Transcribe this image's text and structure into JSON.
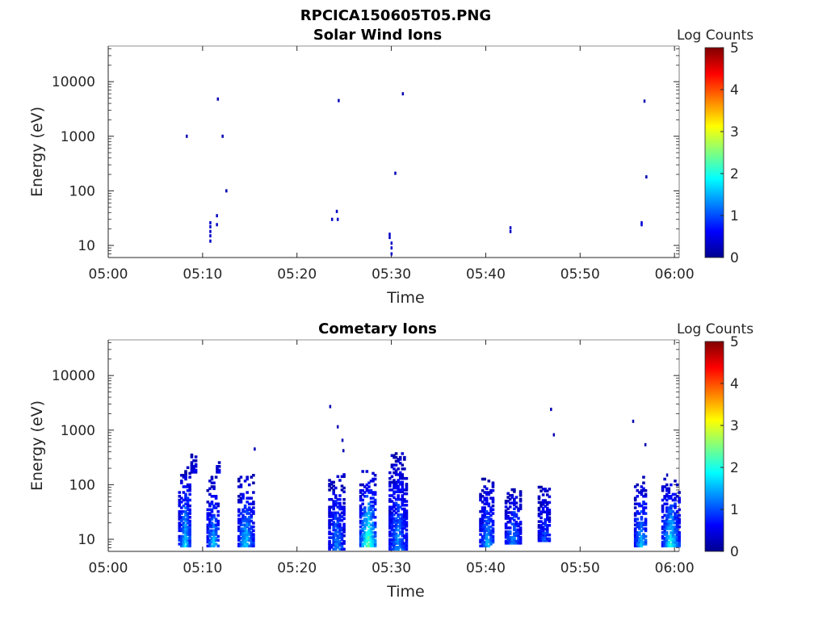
{
  "figure_title": "RPCICA150605T05.PNG",
  "colorbar": {
    "label": "Log Counts",
    "ticks": [
      "0",
      "1",
      "2",
      "3",
      "4",
      "5"
    ],
    "stops": [
      "#00008f",
      "#0000ff",
      "#00ffff",
      "#ffff00",
      "#ff0000",
      "#800000"
    ]
  },
  "chart_data": [
    {
      "type": "heatmap",
      "title": "Solar Wind Ions",
      "xlabel": "Time",
      "ylabel": "Energy (eV)",
      "x_ticks": [
        "05:00",
        "05:10",
        "05:20",
        "05:30",
        "05:40",
        "05:50",
        "06:00"
      ],
      "x_range_minutes": [
        0,
        60.5
      ],
      "y_ticks": [
        "10",
        "100",
        "1000",
        "10000"
      ],
      "y_scale": "log",
      "y_range": [
        6,
        45000
      ],
      "z_range": [
        0,
        5
      ],
      "cells": [
        {
          "t": 8.3,
          "e": 1000,
          "v": 0.2
        },
        {
          "t": 10.8,
          "e": 12,
          "v": 0.3
        },
        {
          "t": 10.8,
          "e": 15,
          "v": 0.3
        },
        {
          "t": 10.8,
          "e": 18,
          "v": 0.3
        },
        {
          "t": 10.8,
          "e": 22,
          "v": 0.3
        },
        {
          "t": 10.8,
          "e": 26,
          "v": 0.3
        },
        {
          "t": 11.5,
          "e": 24,
          "v": 0.3
        },
        {
          "t": 11.5,
          "e": 35,
          "v": 0.3
        },
        {
          "t": 11.6,
          "e": 4800,
          "v": 0.2
        },
        {
          "t": 12.1,
          "e": 1000,
          "v": 0.2
        },
        {
          "t": 12.5,
          "e": 100,
          "v": 0.2
        },
        {
          "t": 23.7,
          "e": 30,
          "v": 0.3
        },
        {
          "t": 24.2,
          "e": 42,
          "v": 0.3
        },
        {
          "t": 24.3,
          "e": 30,
          "v": 0.3
        },
        {
          "t": 24.4,
          "e": 4500,
          "v": 0.2
        },
        {
          "t": 29.8,
          "e": 14,
          "v": 0.3
        },
        {
          "t": 29.8,
          "e": 16,
          "v": 0.3
        },
        {
          "t": 30.0,
          "e": 7,
          "v": 0.3
        },
        {
          "t": 30.0,
          "e": 9,
          "v": 0.3
        },
        {
          "t": 30.0,
          "e": 11,
          "v": 0.3
        },
        {
          "t": 30.4,
          "e": 210,
          "v": 0.2
        },
        {
          "t": 31.2,
          "e": 6000,
          "v": 0.2
        },
        {
          "t": 42.6,
          "e": 18,
          "v": 0.3
        },
        {
          "t": 42.6,
          "e": 21,
          "v": 0.3
        },
        {
          "t": 56.5,
          "e": 24,
          "v": 0.4
        },
        {
          "t": 56.5,
          "e": 26,
          "v": 0.4
        },
        {
          "t": 56.8,
          "e": 4400,
          "v": 0.2
        },
        {
          "t": 57.0,
          "e": 180,
          "v": 0.2
        }
      ]
    },
    {
      "type": "heatmap",
      "title": "Cometary Ions",
      "xlabel": "Time",
      "ylabel": "Energy (eV)",
      "x_ticks": [
        "05:00",
        "05:10",
        "05:20",
        "05:30",
        "05:40",
        "05:50",
        "06:00"
      ],
      "x_range_minutes": [
        0,
        60.5
      ],
      "y_ticks": [
        "10",
        "100",
        "1000",
        "10000"
      ],
      "y_scale": "log",
      "y_range": [
        6,
        45000
      ],
      "z_range": [
        0,
        5
      ],
      "bursts": [
        {
          "t0": 7.4,
          "t1": 8.7,
          "emin": 8,
          "emax": 220,
          "core": 1.3
        },
        {
          "t0": 8.7,
          "t1": 9.2,
          "emin": 180,
          "emax": 450,
          "core": 0.4
        },
        {
          "t0": 10.4,
          "t1": 11.7,
          "emin": 8,
          "emax": 150,
          "core": 1.2
        },
        {
          "t0": 11.4,
          "t1": 11.8,
          "emin": 180,
          "emax": 280,
          "core": 0.4
        },
        {
          "t0": 13.7,
          "t1": 15.3,
          "emin": 8,
          "emax": 160,
          "core": 1.3
        },
        {
          "t0": 23.3,
          "t1": 24.9,
          "emin": 7,
          "emax": 170,
          "core": 1.0
        },
        {
          "t0": 26.6,
          "t1": 28.3,
          "emin": 8,
          "emax": 190,
          "core": 1.9
        },
        {
          "t0": 29.7,
          "t1": 31.5,
          "emin": 7,
          "emax": 420,
          "core": 1.0
        },
        {
          "t0": 39.3,
          "t1": 40.8,
          "emin": 8,
          "emax": 140,
          "core": 1.1
        },
        {
          "t0": 42.0,
          "t1": 43.6,
          "emin": 9,
          "emax": 100,
          "core": 1.0
        },
        {
          "t0": 45.5,
          "t1": 46.8,
          "emin": 10,
          "emax": 100,
          "core": 0.7
        },
        {
          "t0": 55.7,
          "t1": 57.0,
          "emin": 8,
          "emax": 160,
          "core": 1.2
        },
        {
          "t0": 58.6,
          "t1": 60.4,
          "emin": 8,
          "emax": 150,
          "core": 1.5
        }
      ],
      "cells": [
        {
          "t": 23.5,
          "e": 2700,
          "v": 0.2
        },
        {
          "t": 24.3,
          "e": 1150,
          "v": 0.2
        },
        {
          "t": 24.8,
          "e": 650,
          "v": 0.2
        },
        {
          "t": 24.9,
          "e": 420,
          "v": 0.2
        },
        {
          "t": 15.5,
          "e": 450,
          "v": 0.2
        },
        {
          "t": 46.9,
          "e": 2400,
          "v": 0.2
        },
        {
          "t": 47.2,
          "e": 820,
          "v": 0.2
        },
        {
          "t": 55.6,
          "e": 1450,
          "v": 0.2
        },
        {
          "t": 56.9,
          "e": 540,
          "v": 0.2
        },
        {
          "t": 59.2,
          "e": 150,
          "v": 0.2
        }
      ]
    }
  ]
}
